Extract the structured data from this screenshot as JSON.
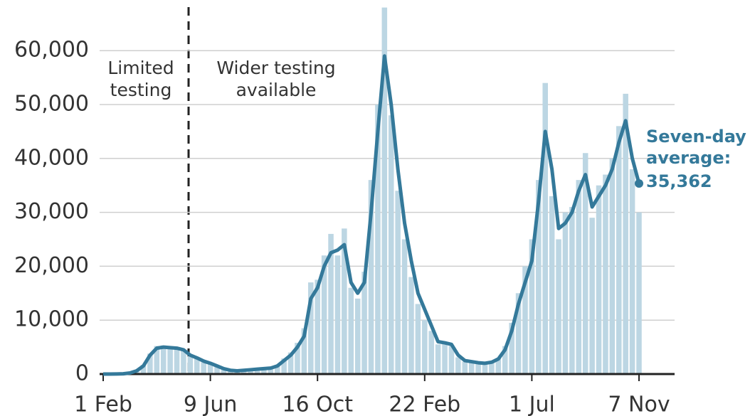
{
  "chart_data": {
    "type": "bar-line",
    "annotations": [
      [
        "Limited",
        "testing"
      ],
      [
        "Wider testing",
        "available"
      ]
    ],
    "categories": [
      "1 Feb",
      null,
      null,
      null,
      null,
      null,
      null,
      null,
      null,
      null,
      null,
      null,
      null,
      null,
      null,
      null,
      "9 Jun",
      null,
      null,
      null,
      null,
      null,
      null,
      null,
      null,
      null,
      null,
      null,
      null,
      null,
      null,
      null,
      "16 Oct",
      null,
      null,
      null,
      null,
      null,
      null,
      null,
      null,
      null,
      null,
      null,
      null,
      null,
      null,
      null,
      "22 Feb",
      null,
      null,
      null,
      null,
      null,
      null,
      null,
      null,
      null,
      null,
      null,
      null,
      null,
      null,
      null,
      "1 Jul",
      null,
      null,
      null,
      null,
      null,
      null,
      null,
      null,
      null,
      null,
      null,
      null,
      null,
      null,
      null,
      "7 Nov"
    ],
    "bars": {
      "color": "#bcd6e3",
      "values": [
        0,
        0,
        30,
        60,
        250,
        700,
        1700,
        3800,
        5200,
        5300,
        4800,
        5000,
        4400,
        3300,
        2900,
        2200,
        1800,
        1400,
        900,
        650,
        550,
        750,
        850,
        850,
        1100,
        1200,
        1700,
        2900,
        4000,
        5800,
        8500,
        17000,
        17500,
        22000,
        26000,
        22000,
        27000,
        16000,
        14000,
        19000,
        36000,
        50000,
        68000,
        48000,
        34000,
        25000,
        18000,
        13000,
        10000,
        8000,
        5500,
        6000,
        5200,
        3100,
        2300,
        2500,
        1900,
        1900,
        2300,
        3000,
        5200,
        9500,
        15000,
        20000,
        25000,
        36000,
        54000,
        33000,
        25000,
        30000,
        31000,
        36000,
        41000,
        29000,
        35000,
        37000,
        40000,
        46000,
        52000,
        38000,
        30000
      ]
    },
    "line": {
      "label": [
        "Seven-day",
        "average:"
      ],
      "color": "#34799a",
      "values": [
        0,
        0,
        20,
        50,
        200,
        600,
        1500,
        3500,
        4800,
        5000,
        4900,
        4800,
        4500,
        3500,
        3000,
        2400,
        2000,
        1500,
        1000,
        700,
        600,
        700,
        800,
        900,
        1000,
        1100,
        1500,
        2500,
        3500,
        5000,
        7000,
        14000,
        16000,
        20000,
        22500,
        23000,
        24000,
        17000,
        15000,
        17000,
        30000,
        45000,
        59000,
        50000,
        38000,
        28000,
        21000,
        15000,
        12000,
        9000,
        6000,
        5800,
        5500,
        3500,
        2500,
        2300,
        2100,
        2000,
        2200,
        2800,
        4500,
        8000,
        13000,
        17000,
        21000,
        32000,
        45000,
        38000,
        27000,
        28000,
        30000,
        34000,
        37000,
        31000,
        33000,
        35000,
        38000,
        43000,
        47000,
        40000,
        35362
      ],
      "value_labels": [
        null,
        null,
        null,
        null,
        null,
        null,
        null,
        null,
        null,
        null,
        null,
        null,
        null,
        null,
        null,
        null,
        null,
        null,
        null,
        null,
        null,
        null,
        null,
        null,
        null,
        null,
        null,
        null,
        null,
        null,
        null,
        null,
        null,
        null,
        null,
        null,
        null,
        null,
        null,
        null,
        null,
        null,
        null,
        null,
        null,
        null,
        null,
        null,
        null,
        null,
        null,
        null,
        null,
        null,
        null,
        null,
        null,
        null,
        null,
        null,
        null,
        null,
        null,
        null,
        null,
        null,
        null,
        null,
        null,
        null,
        null,
        null,
        null,
        null,
        null,
        null,
        null,
        null,
        null,
        null,
        "35,362"
      ]
    },
    "ylim": [
      0,
      69000
    ],
    "yticks": [
      0,
      {
        "value": 10000,
        "label": "10,000"
      },
      {
        "value": 20000,
        "label": "20,000"
      },
      {
        "value": 30000,
        "label": "30,000"
      },
      {
        "value": 40000,
        "label": "40,000"
      },
      {
        "value": 50000,
        "label": "50,000"
      },
      {
        "value": 60000,
        "label": "60,000"
      }
    ],
    "grid": true
  }
}
